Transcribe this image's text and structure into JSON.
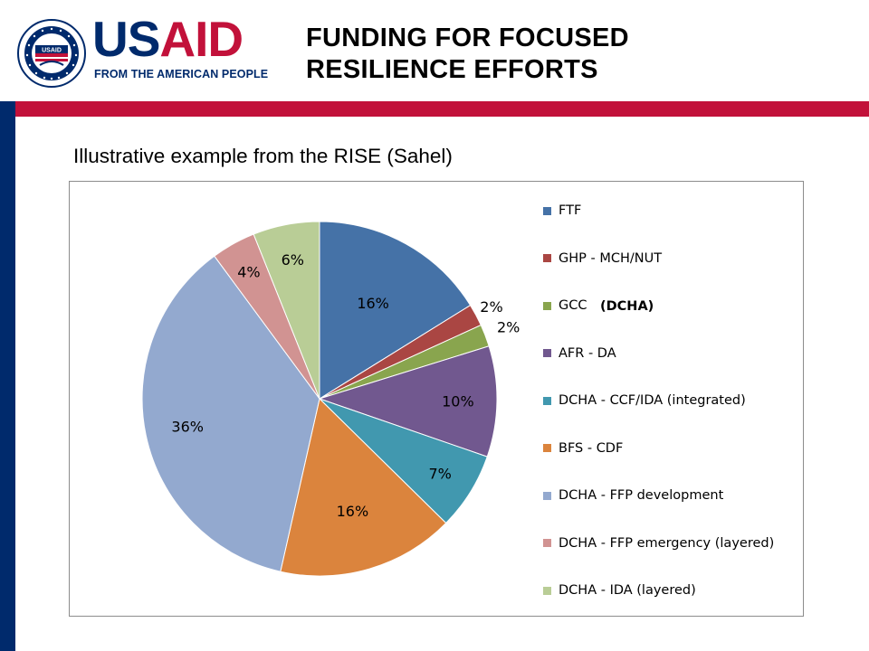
{
  "header": {
    "logo": {
      "wordmark_us": "US",
      "wordmark_aid": "AID",
      "tagline": "FROM THE AMERICAN PEOPLE",
      "seal_text": "UNITED STATES AGENCY FOR INTERNATIONAL DEVELOPMENT",
      "seal_inner": "USAID"
    },
    "title_line1": "FUNDING FOR FOCUSED",
    "title_line2": "RESILIENCE  EFFORTS"
  },
  "subtitle": "Illustrative example from the RISE (Sahel)",
  "colors": {
    "navy": "#002a6c",
    "red": "#c2113a"
  },
  "chart_data": {
    "type": "pie",
    "title": "",
    "legend_position": "right",
    "slices": [
      {
        "label": "FTF",
        "value": 16,
        "display": "16%",
        "color": "#4572a7"
      },
      {
        "label": "GHP - MCH/NUT",
        "value": 2,
        "display": "2%",
        "color": "#aa4643"
      },
      {
        "label": "GCC",
        "value": 2,
        "display": "2%",
        "color": "#89a54e"
      },
      {
        "label": "AFR - DA",
        "value": 10,
        "display": "10%",
        "color": "#71588f"
      },
      {
        "label": "DCHA - CCF/IDA (integrated)",
        "value": 7,
        "display": "7%",
        "color": "#4198af"
      },
      {
        "label": "BFS - CDF",
        "value": 16,
        "display": "16%",
        "color": "#db843d"
      },
      {
        "label": "DCHA - FFP development",
        "value": 36,
        "display": "36%",
        "color": "#93a9cf"
      },
      {
        "label": "DCHA - FFP emergency (layered)",
        "value": 4,
        "display": "4%",
        "color": "#d19392"
      },
      {
        "label": "DCHA - IDA (layered)",
        "value": 6,
        "display": "6%",
        "color": "#b9cd96"
      }
    ],
    "annotation": "(DCHA)"
  }
}
